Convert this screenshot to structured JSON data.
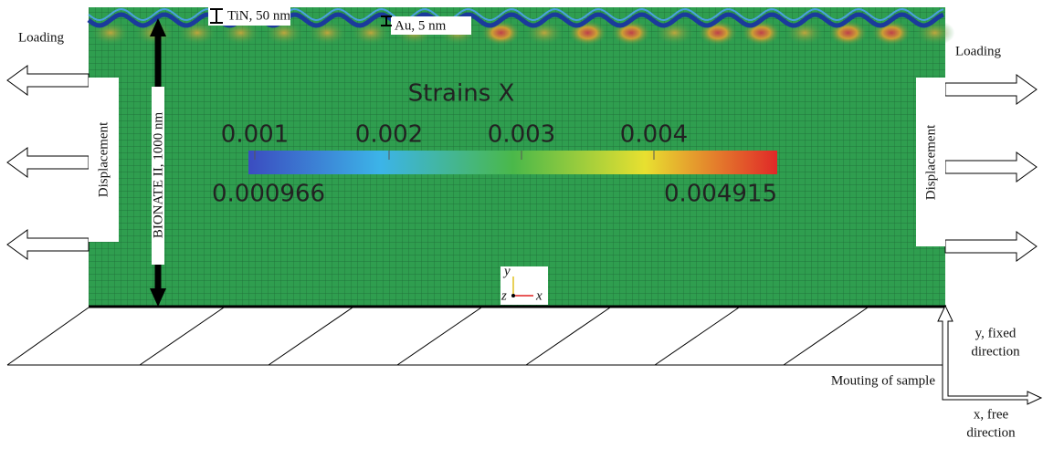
{
  "labels": {
    "tin": "TiN, 50 nm",
    "au": "Au, 5 nm",
    "loading_left": "Loading",
    "loading_right": "Loading",
    "displacement_left": "Displacement",
    "displacement_right": "Displacement",
    "thickness": "BIONATE II, 1000 nm",
    "mounting": "Mouting of sample",
    "y_fixed": [
      "y, fixed",
      "direction"
    ],
    "x_free": [
      "x, free",
      "direction"
    ]
  },
  "colorbar": {
    "title": "Strains X",
    "ticks": [
      "0.001",
      "0.002",
      "0.003",
      "0.004"
    ],
    "min": "0.000966",
    "max": "0.004915"
  },
  "triad": {
    "y": "y",
    "z": "z",
    "x": "x"
  }
}
